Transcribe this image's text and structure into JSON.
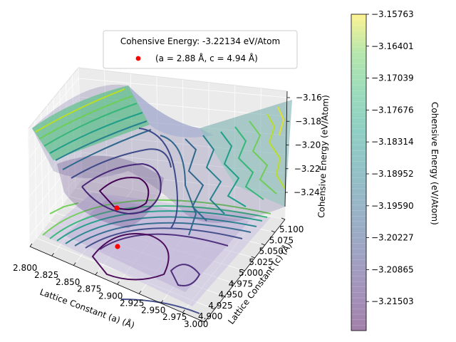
{
  "chart_data": {
    "type": "surface3d",
    "legend": {
      "title": "Cohensive Energy: -3.22134 eV/Atom",
      "entry": "(a = 2.88 Å, c = 4.94 Å)",
      "placement": "top-center",
      "marker_color": "#ff0000"
    },
    "minimum_point": {
      "a": 2.88,
      "c": 4.94,
      "energy": -3.22134
    },
    "xlabel": "Lattice Constant (a) (Å)",
    "ylabel": "Lattice Constant (c) (Å)",
    "zlabel": "Cohensive Energy (eV/Atom)",
    "xlim": [
      2.8,
      3.0
    ],
    "ylim": [
      4.9,
      5.1
    ],
    "zlim": [
      -3.25,
      -3.157
    ],
    "xticks": [
      "2.800",
      "2.825",
      "2.850",
      "2.875",
      "2.900",
      "2.925",
      "2.950",
      "2.975",
      "3.000"
    ],
    "yticks": [
      "4.900",
      "4.925",
      "4.950",
      "4.975",
      "5.000",
      "5.025",
      "5.050",
      "5.075",
      "5.100"
    ],
    "zticks": [
      "−3.16",
      "−3.18",
      "−3.20",
      "−3.22",
      "−3.24"
    ],
    "colorbar": {
      "label": "Cohensive Energy (eV/Atom)",
      "ticks": [
        "−3.15763",
        "−3.16401",
        "−3.17039",
        "−3.17676",
        "−3.18314",
        "−3.18952",
        "−3.19590",
        "−3.20227",
        "−3.20865",
        "−3.21503"
      ],
      "range": [
        -3.2182,
        -3.15763
      ],
      "colormap": "viridis"
    },
    "grid": true
  }
}
